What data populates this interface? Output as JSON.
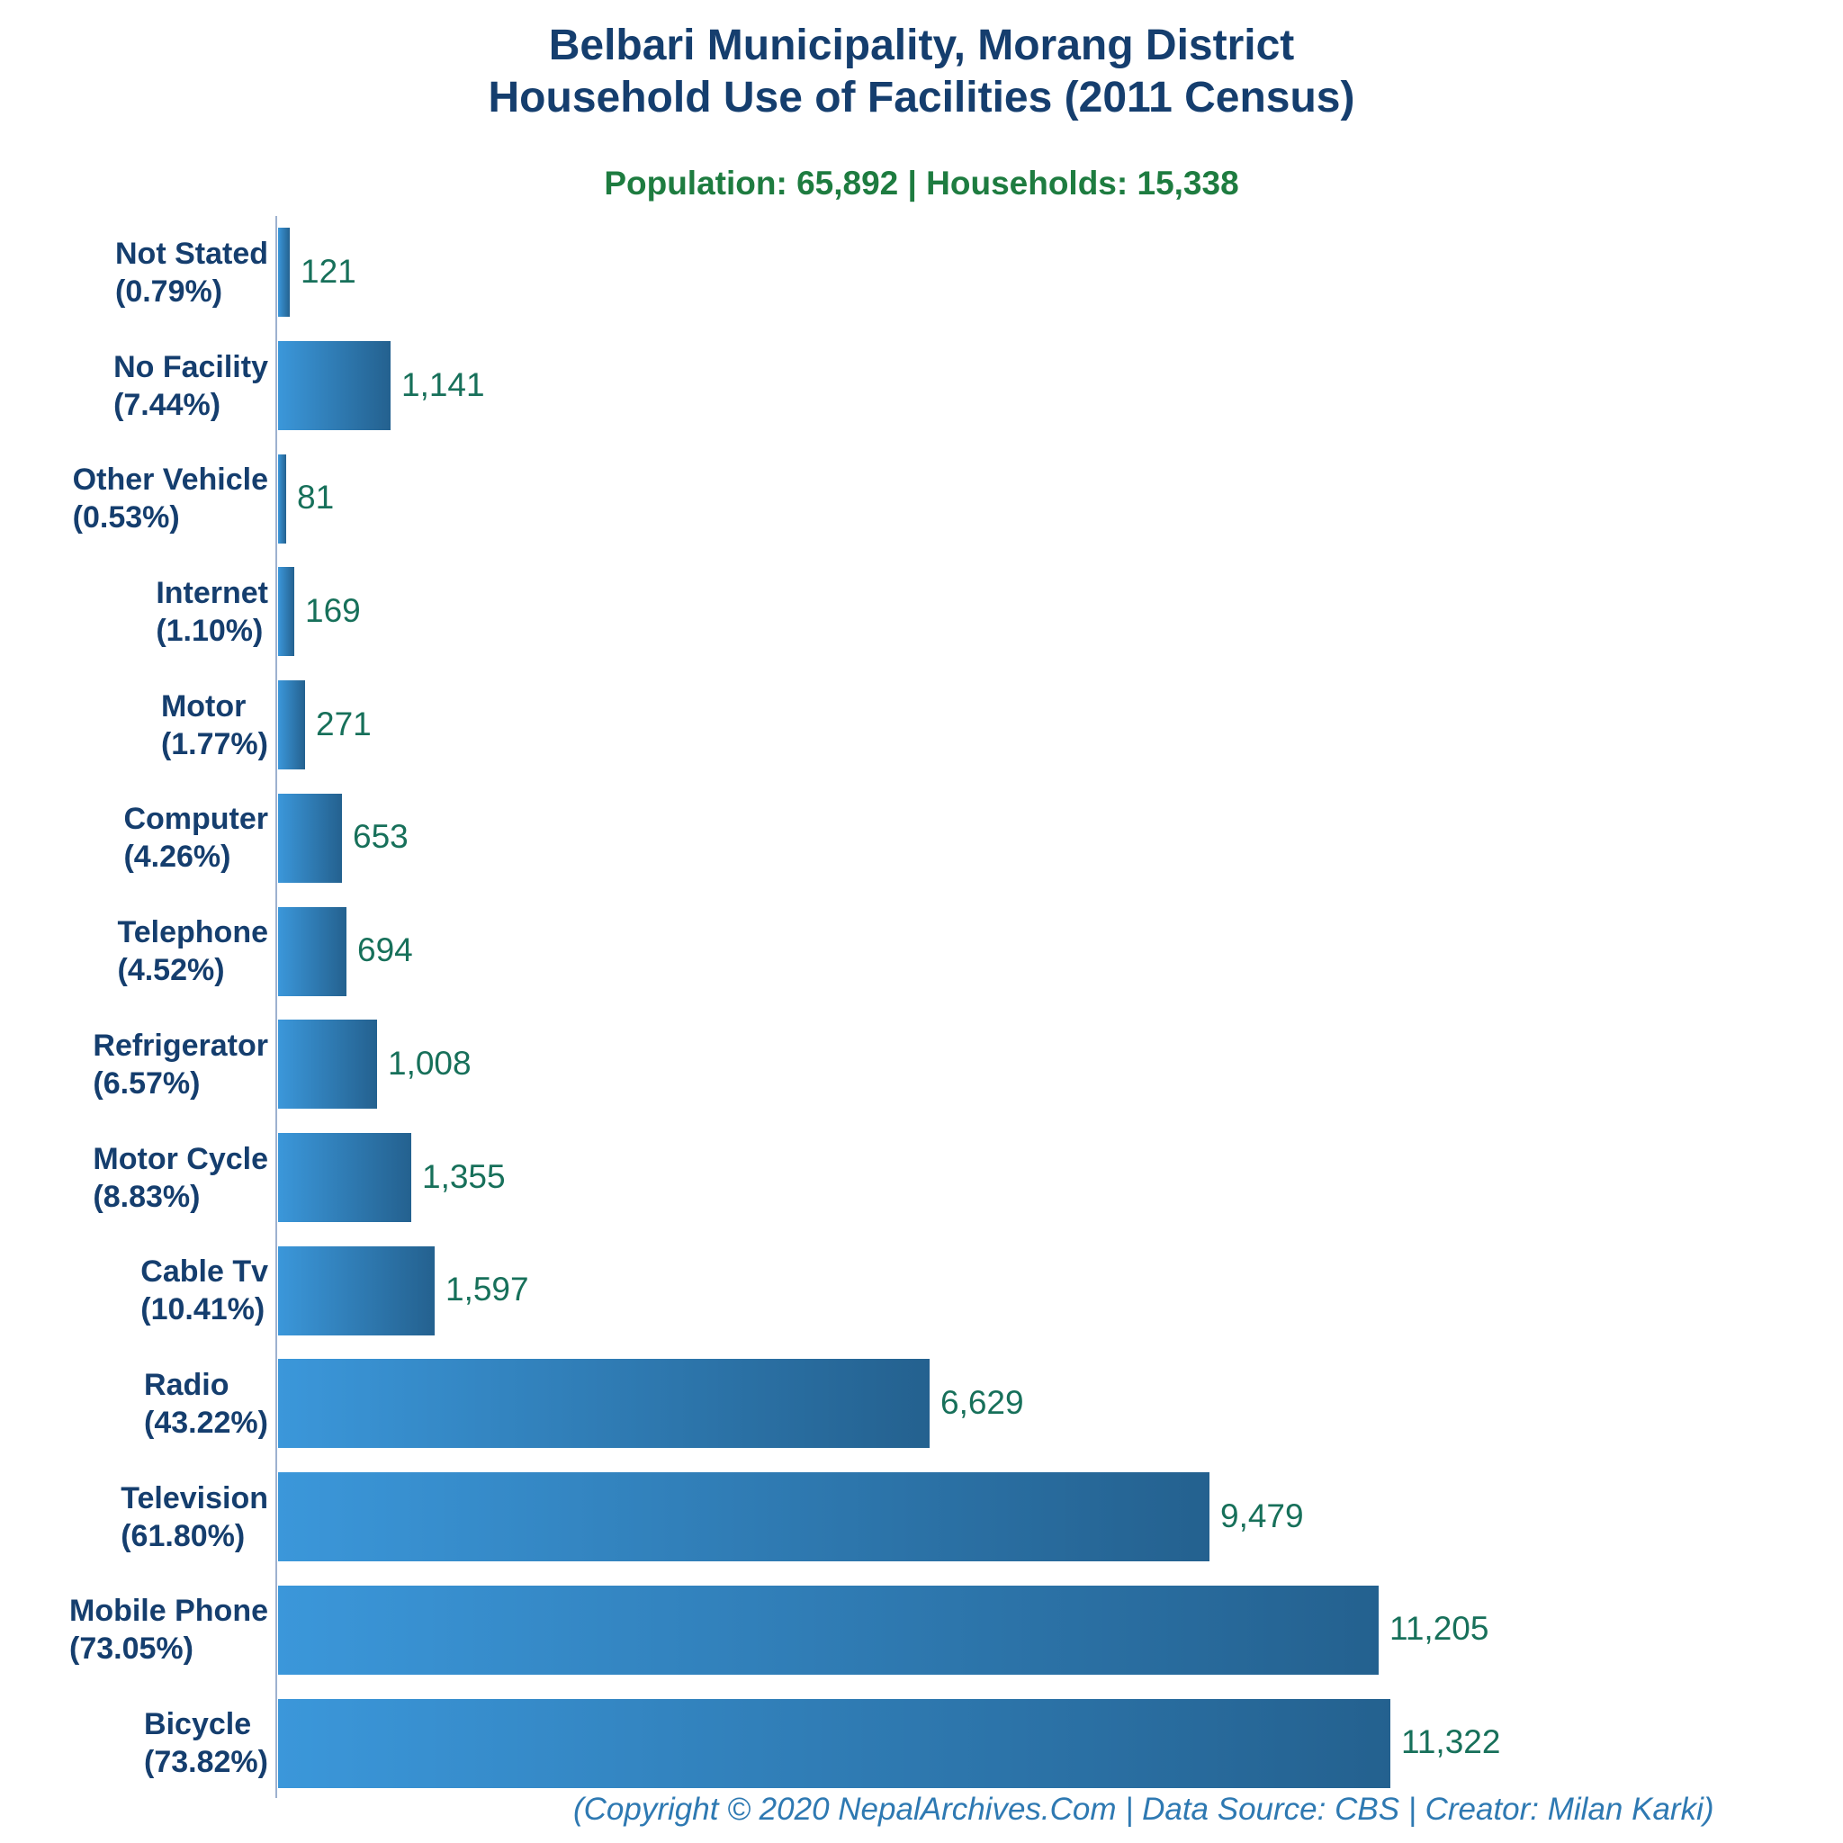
{
  "title": {
    "line1": "Belbari Municipality, Morang District",
    "line2": "Household Use of Facilities (2011 Census)"
  },
  "subtitle": "Population: 65,892 | Households: 15,338",
  "footer": "(Copyright © 2020 NepalArchives.Com | Data Source: CBS | Creator: Milan Karki)",
  "colors": {
    "title_navy": "#153e6e",
    "subtitle_green": "#1e7c40",
    "value_green": "#17705a",
    "footer_blue": "#2e79b2",
    "axis_line": "#9db1cf",
    "bar_gradient_start": "#3b97da",
    "bar_gradient_end": "#24618f"
  },
  "chart_data": {
    "type": "bar",
    "orientation": "horizontal",
    "title": "Belbari Municipality, Morang District — Household Use of Facilities (2011 Census)",
    "subtitle": "Population: 65,892 | Households: 15,338",
    "xlabel": "",
    "ylabel": "",
    "xlim": [
      0,
      11500
    ],
    "grid": false,
    "legend": "none",
    "categories": [
      "Not Stated",
      "No Facility",
      "Other Vehicle",
      "Internet",
      "Motor",
      "Computer",
      "Telephone",
      "Refrigerator",
      "Motor Cycle",
      "Cable Tv",
      "Radio",
      "Television",
      "Mobile Phone",
      "Bicycle"
    ],
    "percent_labels": [
      "(0.79%)",
      "(7.44%)",
      "(0.53%)",
      "(1.10%)",
      "(1.77%)",
      "(4.26%)",
      "(4.52%)",
      "(6.57%)",
      "(8.83%)",
      "(10.41%)",
      "(43.22%)",
      "(61.80%)",
      "(73.05%)",
      "(73.82%)"
    ],
    "values": [
      121,
      1141,
      81,
      169,
      271,
      653,
      694,
      1008,
      1355,
      1597,
      6629,
      9479,
      11205,
      11322
    ],
    "value_labels": [
      "121",
      "1,141",
      "81",
      "169",
      "271",
      "653",
      "694",
      "1,008",
      "1,355",
      "1,597",
      "6,629",
      "9,479",
      "11,205",
      "11,322"
    ]
  }
}
